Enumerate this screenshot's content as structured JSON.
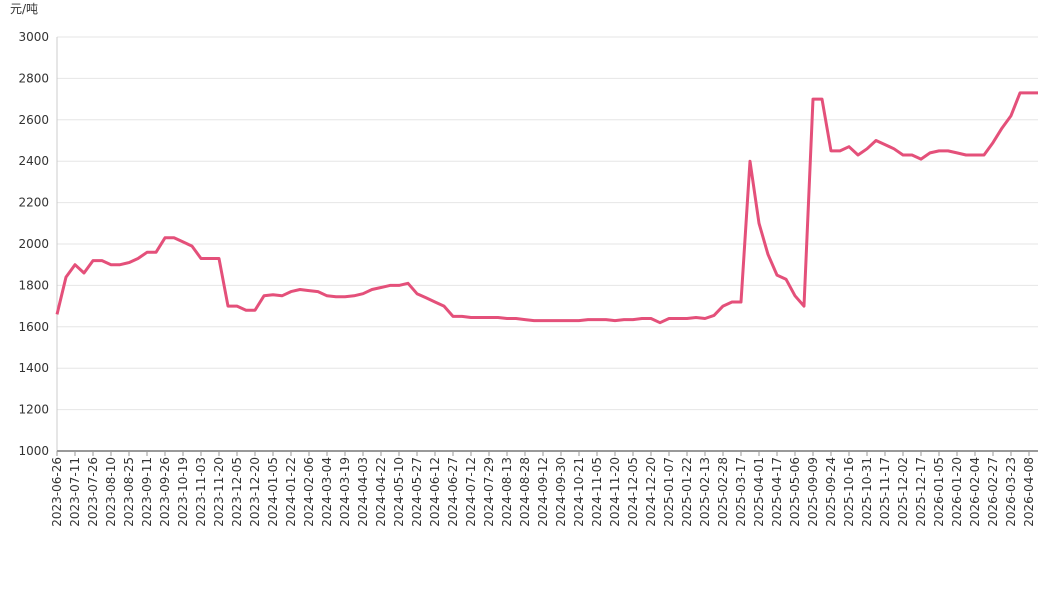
{
  "chart_data": {
    "type": "line",
    "y_unit": "元/吨",
    "categories": [
      "2023-06-26",
      null,
      "2023-07-11",
      null,
      "2023-07-26",
      null,
      "2023-08-10",
      null,
      "2023-08-25",
      null,
      "2023-09-11",
      null,
      "2023-09-26",
      null,
      "2023-10-19",
      null,
      "2023-11-03",
      null,
      "2023-11-20",
      null,
      "2023-12-05",
      null,
      "2023-12-20",
      null,
      "2024-01-05",
      null,
      "2024-01-22",
      null,
      "2024-02-06",
      null,
      "2024-03-04",
      null,
      "2024-03-19",
      null,
      "2024-04-03",
      null,
      "2024-04-22",
      null,
      "2024-05-10",
      null,
      "2024-05-27",
      null,
      "2024-06-12",
      null,
      "2024-06-27",
      null,
      "2024-07-12",
      null,
      "2024-07-29",
      null,
      "2024-08-13",
      null,
      "2024-08-28",
      null,
      "2024-09-12",
      null,
      "2024-09-30",
      null,
      "2024-10-21",
      null,
      "2024-11-05",
      null,
      "2024-11-20",
      null,
      "2024-12-05",
      null,
      "2024-12-20",
      null,
      "2025-01-07",
      null,
      "2025-01-22",
      null,
      "2025-02-13",
      null,
      "2025-02-28",
      null,
      "2025-03-17",
      null,
      "2025-04-01",
      null,
      "2025-04-17",
      null,
      "2025-05-06",
      null,
      "2025-09-09",
      null,
      "2025-09-24",
      null,
      "2025-10-16",
      null,
      "2025-10-31",
      null,
      "2025-11-17",
      null,
      "2025-12-02",
      null,
      "2025-12-17",
      null,
      "2026-01-05",
      null,
      "2026-01-20",
      null,
      "2026-02-04",
      null,
      "2026-02-27",
      null,
      "2026-03-23",
      null,
      "2026-04-08",
      null
    ],
    "values": [
      1660,
      1840,
      1900,
      1860,
      1920,
      1920,
      1900,
      1900,
      1910,
      1930,
      1960,
      1960,
      2030,
      2030,
      2010,
      1990,
      1930,
      1930,
      1930,
      1700,
      1700,
      1680,
      1680,
      1750,
      1755,
      1750,
      1770,
      1780,
      1775,
      1770,
      1750,
      1745,
      1745,
      1750,
      1760,
      1780,
      1790,
      1800,
      1800,
      1810,
      1760,
      1740,
      1720,
      1700,
      1650,
      1650,
      1645,
      1645,
      1645,
      1645,
      1640,
      1640,
      1635,
      1630,
      1630,
      1630,
      1630,
      1630,
      1630,
      1635,
      1635,
      1635,
      1630,
      1635,
      1635,
      1640,
      1640,
      1620,
      1640,
      1640,
      1640,
      1645,
      1640,
      1655,
      1700,
      1720,
      1720,
      2400,
      2100,
      1950,
      1850,
      1830,
      1750,
      1700,
      2700,
      2700,
      2450,
      2450,
      2470,
      2430,
      2460,
      2500,
      2480,
      2460,
      2430,
      2430,
      2410,
      2440,
      2450,
      2450,
      2440,
      2430,
      2430,
      2430,
      2490,
      2560,
      2620,
      2730,
      2730,
      2730
    ],
    "color": "#e4507a",
    "ylim": [
      1000,
      3000
    ],
    "yticks": [
      1000,
      1200,
      1400,
      1600,
      1800,
      2000,
      2200,
      2400,
      2600,
      2800,
      3000
    ],
    "grid": true
  }
}
